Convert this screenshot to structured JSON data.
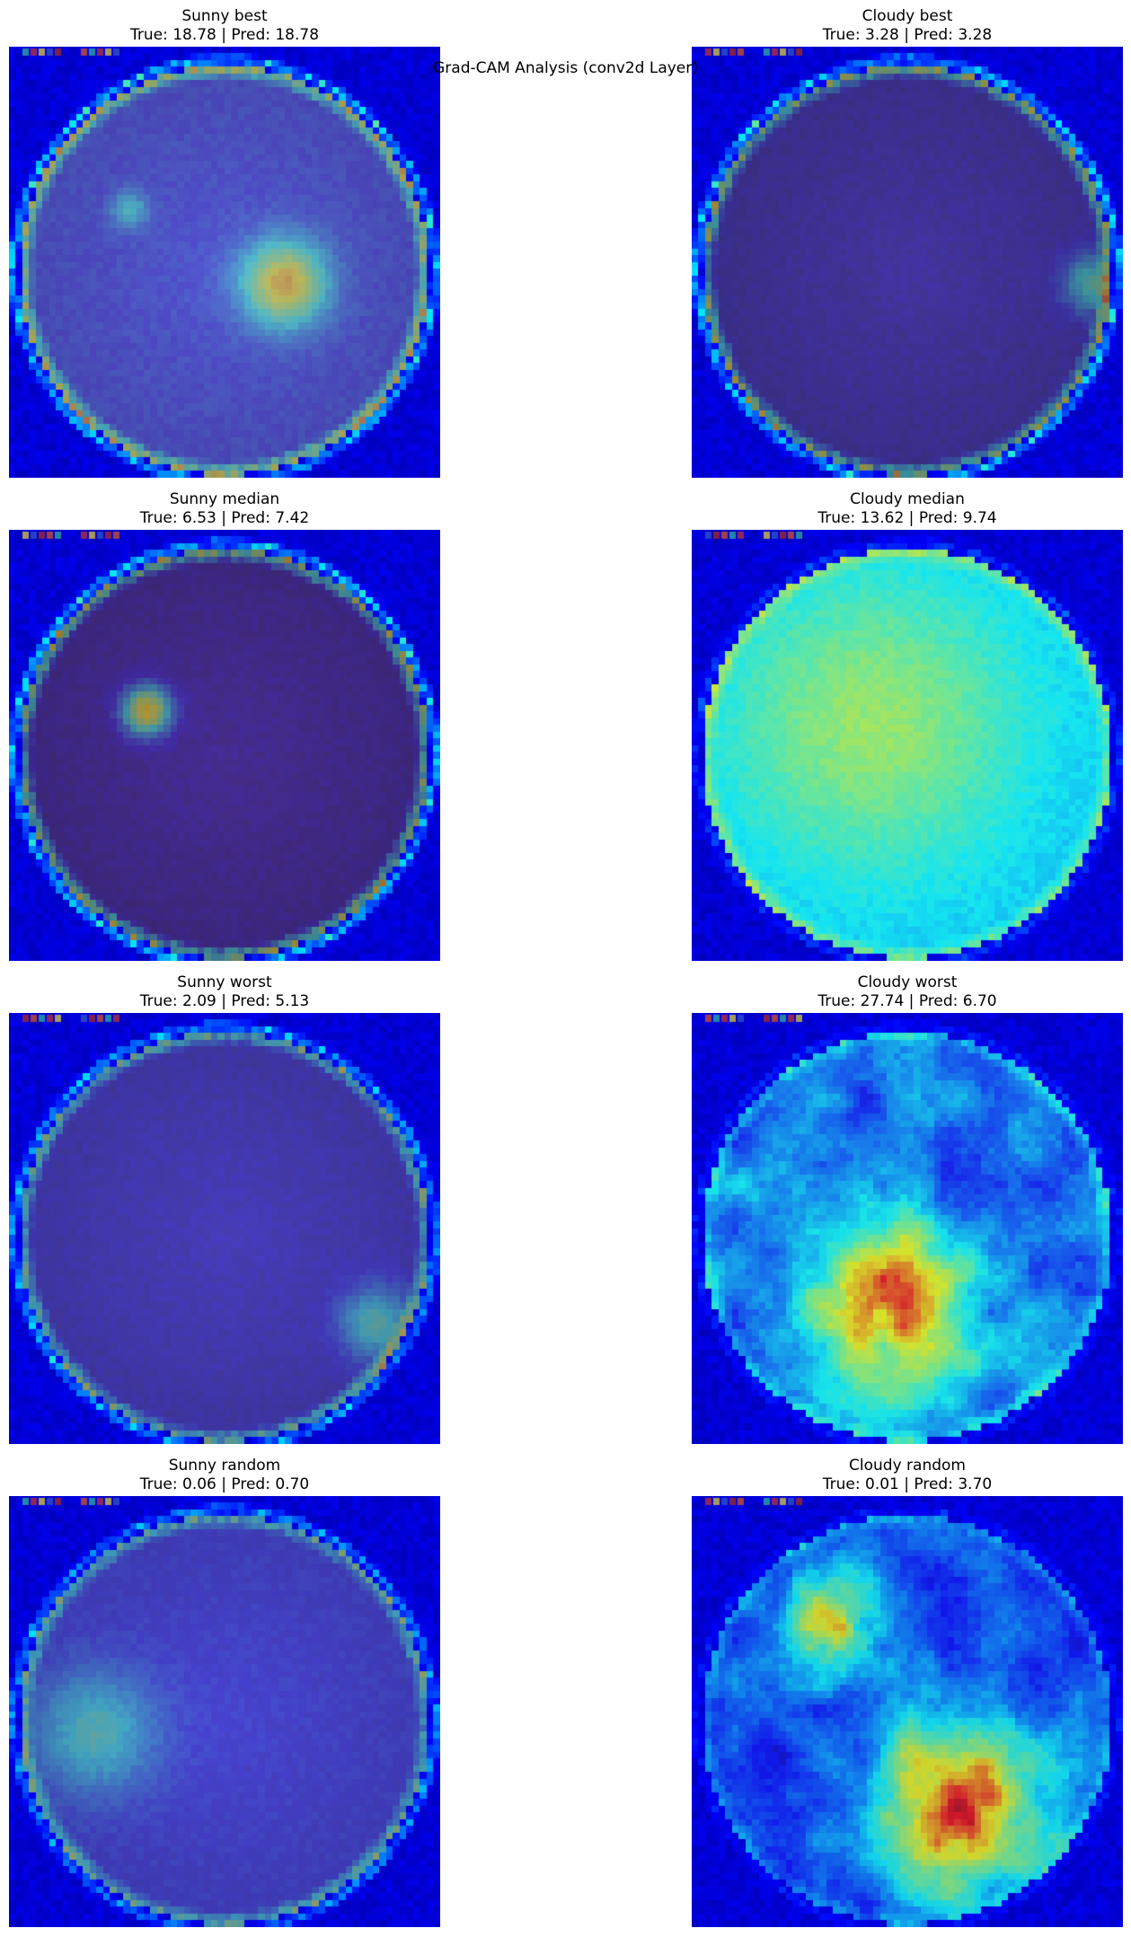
{
  "figure": {
    "suptitle": "Grad-CAM Analysis (conv2d Layer)"
  },
  "panels": [
    {
      "id": "sunny-best",
      "category": "Sunny",
      "kind": "best",
      "title": "Sunny best",
      "caption": "True: 18.78 | Pred: 18.78",
      "true_value": 18.78,
      "pred_value": 18.78,
      "heatmap": "rim-with-center-spot"
    },
    {
      "id": "cloudy-best",
      "category": "Cloudy",
      "kind": "best",
      "title": "Cloudy best",
      "caption": "True: 3.28 | Pred: 3.28",
      "true_value": 3.28,
      "pred_value": 3.28,
      "heatmap": "rim-only"
    },
    {
      "id": "sunny-median",
      "category": "Sunny",
      "kind": "median",
      "title": "Sunny median",
      "caption": "True: 6.53 | Pred: 7.42",
      "true_value": 6.53,
      "pred_value": 7.42,
      "heatmap": "rim-with-left-spot"
    },
    {
      "id": "cloudy-median",
      "category": "Cloudy",
      "kind": "median",
      "title": "Cloudy median",
      "caption": "True: 13.62 | Pred: 9.74",
      "true_value": 13.62,
      "pred_value": 9.74,
      "heatmap": "diffuse-cyan"
    },
    {
      "id": "sunny-worst",
      "category": "Sunny",
      "kind": "worst",
      "title": "Sunny worst",
      "caption": "True: 2.09 | Pred: 5.13",
      "true_value": 2.09,
      "pred_value": 5.13,
      "heatmap": "rim-lower-right"
    },
    {
      "id": "cloudy-worst",
      "category": "Cloudy",
      "kind": "worst",
      "title": "Cloudy worst",
      "caption": "True: 27.74 | Pred: 6.70",
      "true_value": 27.74,
      "pred_value": 6.7,
      "heatmap": "textured-clouds-hot-bottom"
    },
    {
      "id": "sunny-random",
      "category": "Sunny",
      "kind": "random",
      "title": "Sunny random",
      "caption": "True: 0.06 | Pred: 0.70",
      "true_value": 0.06,
      "pred_value": 0.7,
      "heatmap": "rim-with-left-glow"
    },
    {
      "id": "cloudy-random",
      "category": "Cloudy",
      "kind": "random",
      "title": "Cloudy random",
      "caption": "True: 0.01 | Pred: 3.70",
      "true_value": 0.01,
      "pred_value": 3.7,
      "heatmap": "hot-clouds-lower-right"
    }
  ],
  "colormap": "jet"
}
